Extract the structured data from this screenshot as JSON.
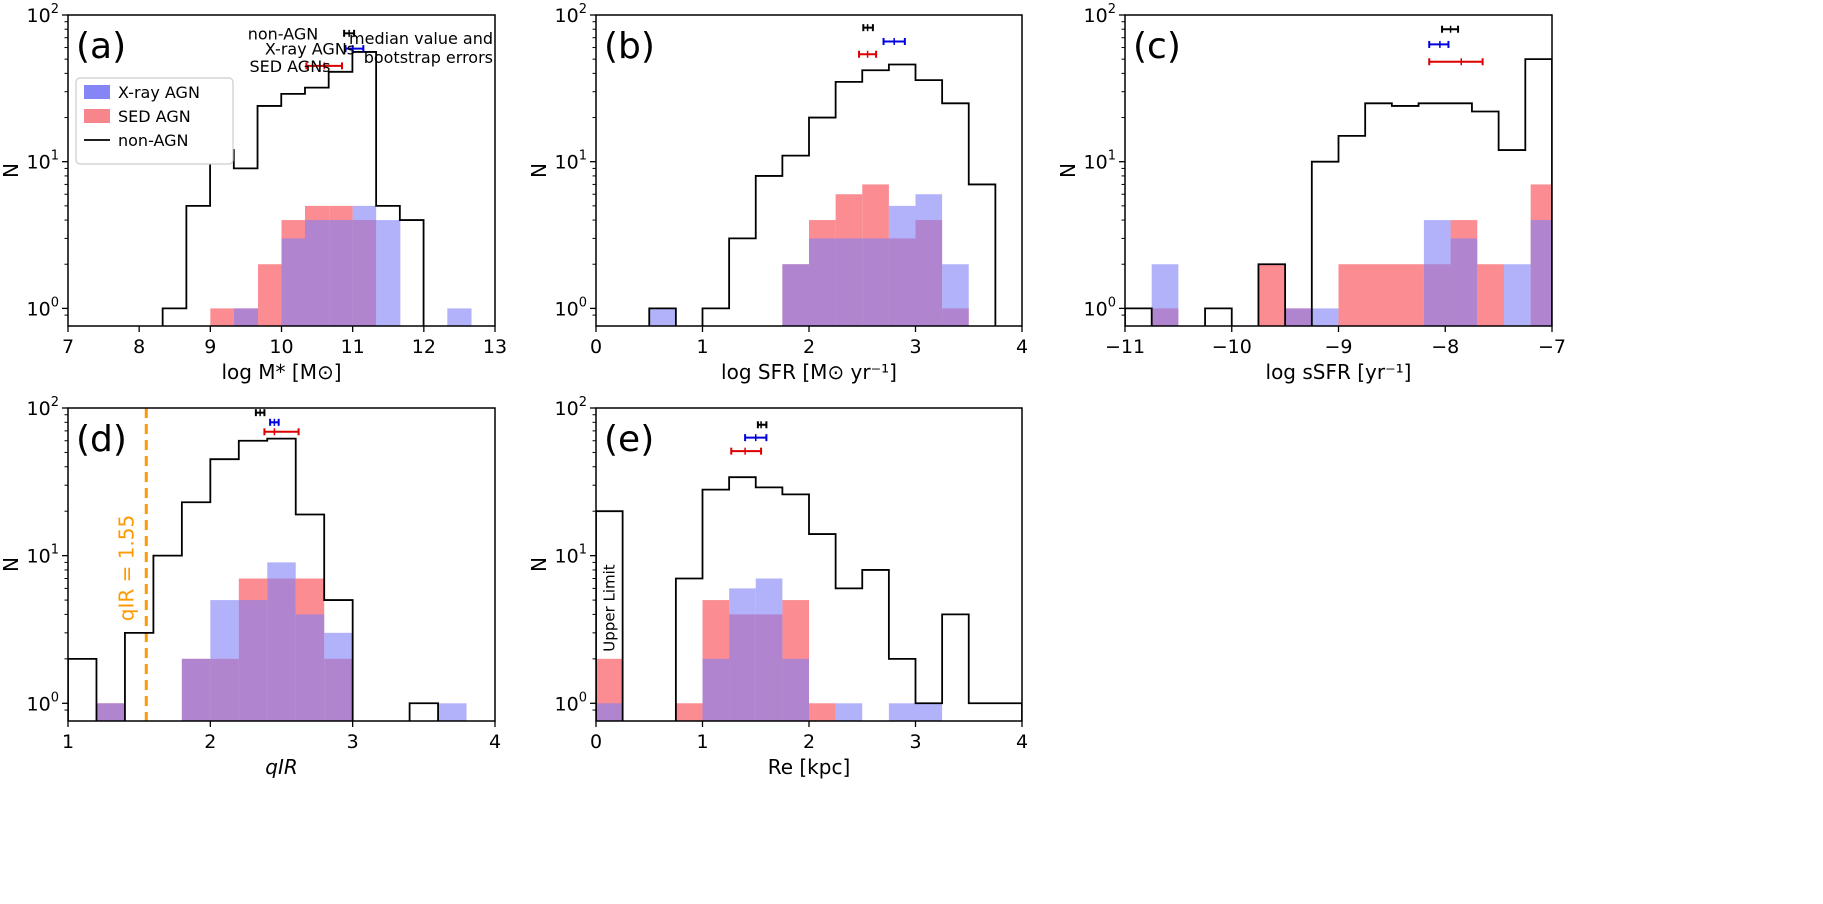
{
  "figure": {
    "y_axis_label": "N"
  },
  "chart_data": [
    {
      "id": "a",
      "panel_label": "(a)",
      "type": "histogram",
      "xlim": [
        7,
        13
      ],
      "xticks": [
        7,
        8,
        9,
        10,
        11,
        12,
        13
      ],
      "xlabel": "log M* [M⊙]",
      "ylabel": "N",
      "yscale": "log",
      "ylim_decades": [
        0,
        2
      ],
      "legend": {
        "entries": [
          {
            "label": "X-ray AGN",
            "kind": "patch",
            "color": "#8585f5"
          },
          {
            "label": "SED AGN",
            "kind": "patch",
            "color": "#f7868c"
          },
          {
            "label": "non-AGN",
            "kind": "line",
            "color": "#000000"
          }
        ]
      },
      "note": {
        "lines": [
          "median value and",
          "bootstrap errors"
        ]
      },
      "medians": [
        {
          "label": "non-AGN",
          "color": "#000000",
          "center": 10.95,
          "low": 10.88,
          "high": 11.02,
          "y": 75
        },
        {
          "label": "X-ray AGNs",
          "color": "#0000dd",
          "center": 11.0,
          "low": 10.9,
          "high": 11.15,
          "y": 59
        },
        {
          "label": "SED AGNs",
          "color": "#dd0000",
          "center": 10.6,
          "low": 10.35,
          "high": 10.85,
          "y": 45
        }
      ],
      "series": [
        {
          "name": "SED AGN",
          "kind": "filled",
          "color": "#fa7f86",
          "bins": [
            [
              9,
              9.33,
              1
            ],
            [
              9.33,
              9.67,
              1
            ],
            [
              9.67,
              10,
              2
            ],
            [
              10,
              10.33,
              4
            ],
            [
              10.33,
              10.67,
              5
            ],
            [
              10.67,
              11,
              5
            ],
            [
              11,
              11.33,
              4
            ]
          ]
        },
        {
          "name": "X-ray AGN",
          "kind": "filled",
          "color": "#7f7ff7",
          "bins": [
            [
              9.33,
              9.67,
              1
            ],
            [
              10,
              10.33,
              3
            ],
            [
              10.33,
              10.67,
              4
            ],
            [
              10.67,
              11,
              4
            ],
            [
              11,
              11.33,
              5
            ],
            [
              11.33,
              11.67,
              4
            ],
            [
              12.33,
              12.67,
              1
            ]
          ]
        },
        {
          "name": "non-AGN",
          "kind": "step",
          "color": "#000000",
          "start": 8.33,
          "width": 0.3333,
          "values": [
            1,
            5,
            12,
            9,
            24,
            29,
            32,
            41,
            56,
            5,
            4
          ]
        }
      ]
    },
    {
      "id": "b",
      "panel_label": "(b)",
      "type": "histogram",
      "xlim": [
        0,
        4
      ],
      "xticks": [
        0,
        1,
        2,
        3,
        4
      ],
      "xlabel": "log SFR [M⊙ yr⁻¹]",
      "ylabel": "N",
      "yscale": "log",
      "ylim_decades": [
        0,
        2
      ],
      "medians": [
        {
          "label": "non-AGN",
          "color": "#000000",
          "center": 2.55,
          "low": 2.51,
          "high": 2.6,
          "y": 82
        },
        {
          "label": "X-ray AGN",
          "color": "#0000dd",
          "center": 2.8,
          "low": 2.7,
          "high": 2.9,
          "y": 66
        },
        {
          "label": "SED AGN",
          "color": "#dd0000",
          "center": 2.55,
          "low": 2.47,
          "high": 2.63,
          "y": 54
        }
      ],
      "series": [
        {
          "name": "SED AGN",
          "kind": "filled",
          "color": "#fa7f86",
          "bins": [
            [
              1.75,
              2,
              2
            ],
            [
              2,
              2.25,
              4
            ],
            [
              2.25,
              2.5,
              6
            ],
            [
              2.5,
              2.75,
              7
            ],
            [
              2.75,
              3,
              3
            ],
            [
              3,
              3.25,
              4
            ],
            [
              3.25,
              3.5,
              1
            ]
          ]
        },
        {
          "name": "X-ray AGN",
          "kind": "filled",
          "color": "#7f7ff7",
          "bins": [
            [
              0.5,
              0.75,
              1
            ],
            [
              1.75,
              2,
              2
            ],
            [
              2,
              2.25,
              3
            ],
            [
              2.25,
              2.5,
              3
            ],
            [
              2.5,
              2.75,
              3
            ],
            [
              2.75,
              3,
              5
            ],
            [
              3,
              3.25,
              6
            ],
            [
              3.25,
              3.5,
              2
            ]
          ]
        },
        {
          "name": "non-AGN",
          "kind": "step",
          "color": "#000000",
          "start": 0.5,
          "width": 0.25,
          "values": [
            1,
            0,
            1,
            3,
            8,
            11,
            20,
            35,
            42,
            46,
            36,
            25,
            7
          ]
        }
      ]
    },
    {
      "id": "c",
      "panel_label": "(c)",
      "type": "histogram",
      "xlim": [
        -11,
        -7
      ],
      "xticks": [
        -11,
        -10,
        -9,
        -8,
        -7
      ],
      "xlabel": "log sSFR [yr⁻¹]",
      "ylabel": "N",
      "yscale": "log",
      "ylim_decades": [
        0,
        2
      ],
      "medians": [
        {
          "label": "non-AGN",
          "color": "#000000",
          "center": -7.95,
          "low": -8.03,
          "high": -7.88,
          "y": 80
        },
        {
          "label": "X-ray AGN",
          "color": "#0000dd",
          "center": -8.05,
          "low": -8.15,
          "high": -7.97,
          "y": 63
        },
        {
          "label": "SED AGN",
          "color": "#dd0000",
          "center": -7.85,
          "low": -8.15,
          "high": -7.65,
          "y": 48
        }
      ],
      "series": [
        {
          "name": "SED AGN",
          "kind": "filled",
          "color": "#fa7f86",
          "bins": [
            [
              -10.75,
              -10.5,
              1
            ],
            [
              -9.75,
              -9.5,
              2
            ],
            [
              -9.5,
              -9.25,
              1
            ],
            [
              -9.0,
              -8.2,
              2
            ],
            [
              -8.2,
              -7.95,
              2
            ],
            [
              -7.95,
              -7.7,
              4
            ],
            [
              -7.7,
              -7.45,
              2
            ],
            [
              -7.2,
              -7,
              7
            ]
          ]
        },
        {
          "name": "X-ray AGN",
          "kind": "filled",
          "color": "#7f7ff7",
          "bins": [
            [
              -10.75,
              -10.5,
              2
            ],
            [
              -9.5,
              -9,
              1
            ],
            [
              -8.2,
              -7.95,
              4
            ],
            [
              -7.95,
              -7.7,
              3
            ],
            [
              -7.45,
              -7.2,
              2
            ],
            [
              -7.2,
              -7,
              4
            ]
          ]
        },
        {
          "name": "non-AGN",
          "kind": "step",
          "color": "#000000",
          "edges": [
            -11,
            -10.75,
            -10.5,
            -10.25,
            -10.0,
            -9.75,
            -9.5,
            -9.25,
            -9.0,
            -8.75,
            -8.5,
            -8.25,
            -8.0,
            -7.75,
            -7.5,
            -7.25,
            -7.0
          ],
          "values": [
            1,
            0,
            0,
            1,
            0,
            2,
            0,
            10,
            15,
            25,
            24,
            25,
            25,
            22,
            12,
            50
          ]
        }
      ]
    },
    {
      "id": "d",
      "panel_label": "(d)",
      "type": "histogram",
      "xlim": [
        1,
        4
      ],
      "xticks": [
        1,
        2,
        3,
        4
      ],
      "xlabel": "qIR",
      "ylabel": "N",
      "yscale": "log",
      "ylim_decades": [
        0,
        2
      ],
      "vline": {
        "x": 1.55,
        "color": "#ff9900",
        "label": "qIR = 1.55"
      },
      "medians": [
        {
          "label": "non-AGN",
          "color": "#000000",
          "center": 2.35,
          "low": 2.32,
          "high": 2.38,
          "y": 93
        },
        {
          "label": "X-ray AGN",
          "color": "#0000dd",
          "center": 2.45,
          "low": 2.42,
          "high": 2.48,
          "y": 80
        },
        {
          "label": "SED AGN",
          "color": "#dd0000",
          "center": 2.45,
          "low": 2.38,
          "high": 2.62,
          "y": 69
        }
      ],
      "series": [
        {
          "name": "SED AGN",
          "kind": "filled",
          "color": "#fa7f86",
          "bins": [
            [
              1.2,
              1.4,
              1
            ],
            [
              1.8,
              2,
              2
            ],
            [
              2,
              2.2,
              2
            ],
            [
              2.2,
              2.4,
              7
            ],
            [
              2.4,
              2.6,
              7
            ],
            [
              2.6,
              2.8,
              7
            ],
            [
              2.8,
              3,
              2
            ]
          ]
        },
        {
          "name": "X-ray AGN",
          "kind": "filled",
          "color": "#7f7ff7",
          "bins": [
            [
              1.2,
              1.4,
              1
            ],
            [
              1.8,
              2,
              2
            ],
            [
              2,
              2.2,
              5
            ],
            [
              2.2,
              2.4,
              5
            ],
            [
              2.4,
              2.6,
              9
            ],
            [
              2.6,
              2.8,
              4
            ],
            [
              2.8,
              3,
              3
            ],
            [
              3.6,
              3.8,
              1
            ]
          ]
        },
        {
          "name": "non-AGN",
          "kind": "step",
          "color": "#000000",
          "start": 1.0,
          "width": 0.2,
          "values": [
            2,
            0,
            3,
            10,
            23,
            45,
            60,
            62,
            19,
            5,
            0,
            0,
            1
          ]
        }
      ]
    },
    {
      "id": "e",
      "panel_label": "(e)",
      "type": "histogram",
      "xlim": [
        0,
        4
      ],
      "xticks": [
        0,
        1,
        2,
        3,
        4
      ],
      "xlabel": "Re [kpc]",
      "ylabel": "N",
      "yscale": "log",
      "ylim_decades": [
        0,
        2
      ],
      "annotation": {
        "text": "Upper Limit"
      },
      "medians": [
        {
          "label": "non-AGN",
          "color": "#000000",
          "center": 1.55,
          "low": 1.52,
          "high": 1.6,
          "y": 77
        },
        {
          "label": "X-ray AGN",
          "color": "#0000dd",
          "center": 1.5,
          "low": 1.4,
          "high": 1.6,
          "y": 63
        },
        {
          "label": "SED AGN",
          "color": "#dd0000",
          "center": 1.4,
          "low": 1.27,
          "high": 1.55,
          "y": 51
        }
      ],
      "series": [
        {
          "name": "SED AGN",
          "kind": "filled",
          "color": "#fa7f86",
          "bins": [
            [
              0,
              0.25,
              2
            ],
            [
              0.75,
              1,
              1
            ],
            [
              1,
              1.25,
              5
            ],
            [
              1.25,
              1.5,
              4
            ],
            [
              1.5,
              1.75,
              4
            ],
            [
              1.75,
              2,
              5
            ],
            [
              2,
              2.25,
              1
            ]
          ]
        },
        {
          "name": "X-ray AGN",
          "kind": "filled",
          "color": "#7f7ff7",
          "bins": [
            [
              0,
              0.25,
              1
            ],
            [
              1,
              1.25,
              2
            ],
            [
              1.25,
              1.5,
              6
            ],
            [
              1.5,
              1.75,
              7
            ],
            [
              1.75,
              2,
              2
            ],
            [
              2.25,
              2.5,
              1
            ],
            [
              2.75,
              3,
              1
            ],
            [
              3,
              3.25,
              1
            ]
          ]
        },
        {
          "name": "non-AGN",
          "kind": "step",
          "color": "#000000",
          "edges": [
            0,
            0.25,
            0.75,
            1.0,
            1.25,
            1.5,
            1.75,
            2.0,
            2.25,
            2.5,
            2.75,
            3.0,
            3.25,
            3.5,
            3.75,
            4.0
          ],
          "values": [
            20,
            0,
            7,
            28,
            34,
            29,
            26,
            14,
            6,
            8,
            2,
            1,
            4,
            1,
            1
          ]
        }
      ]
    }
  ]
}
